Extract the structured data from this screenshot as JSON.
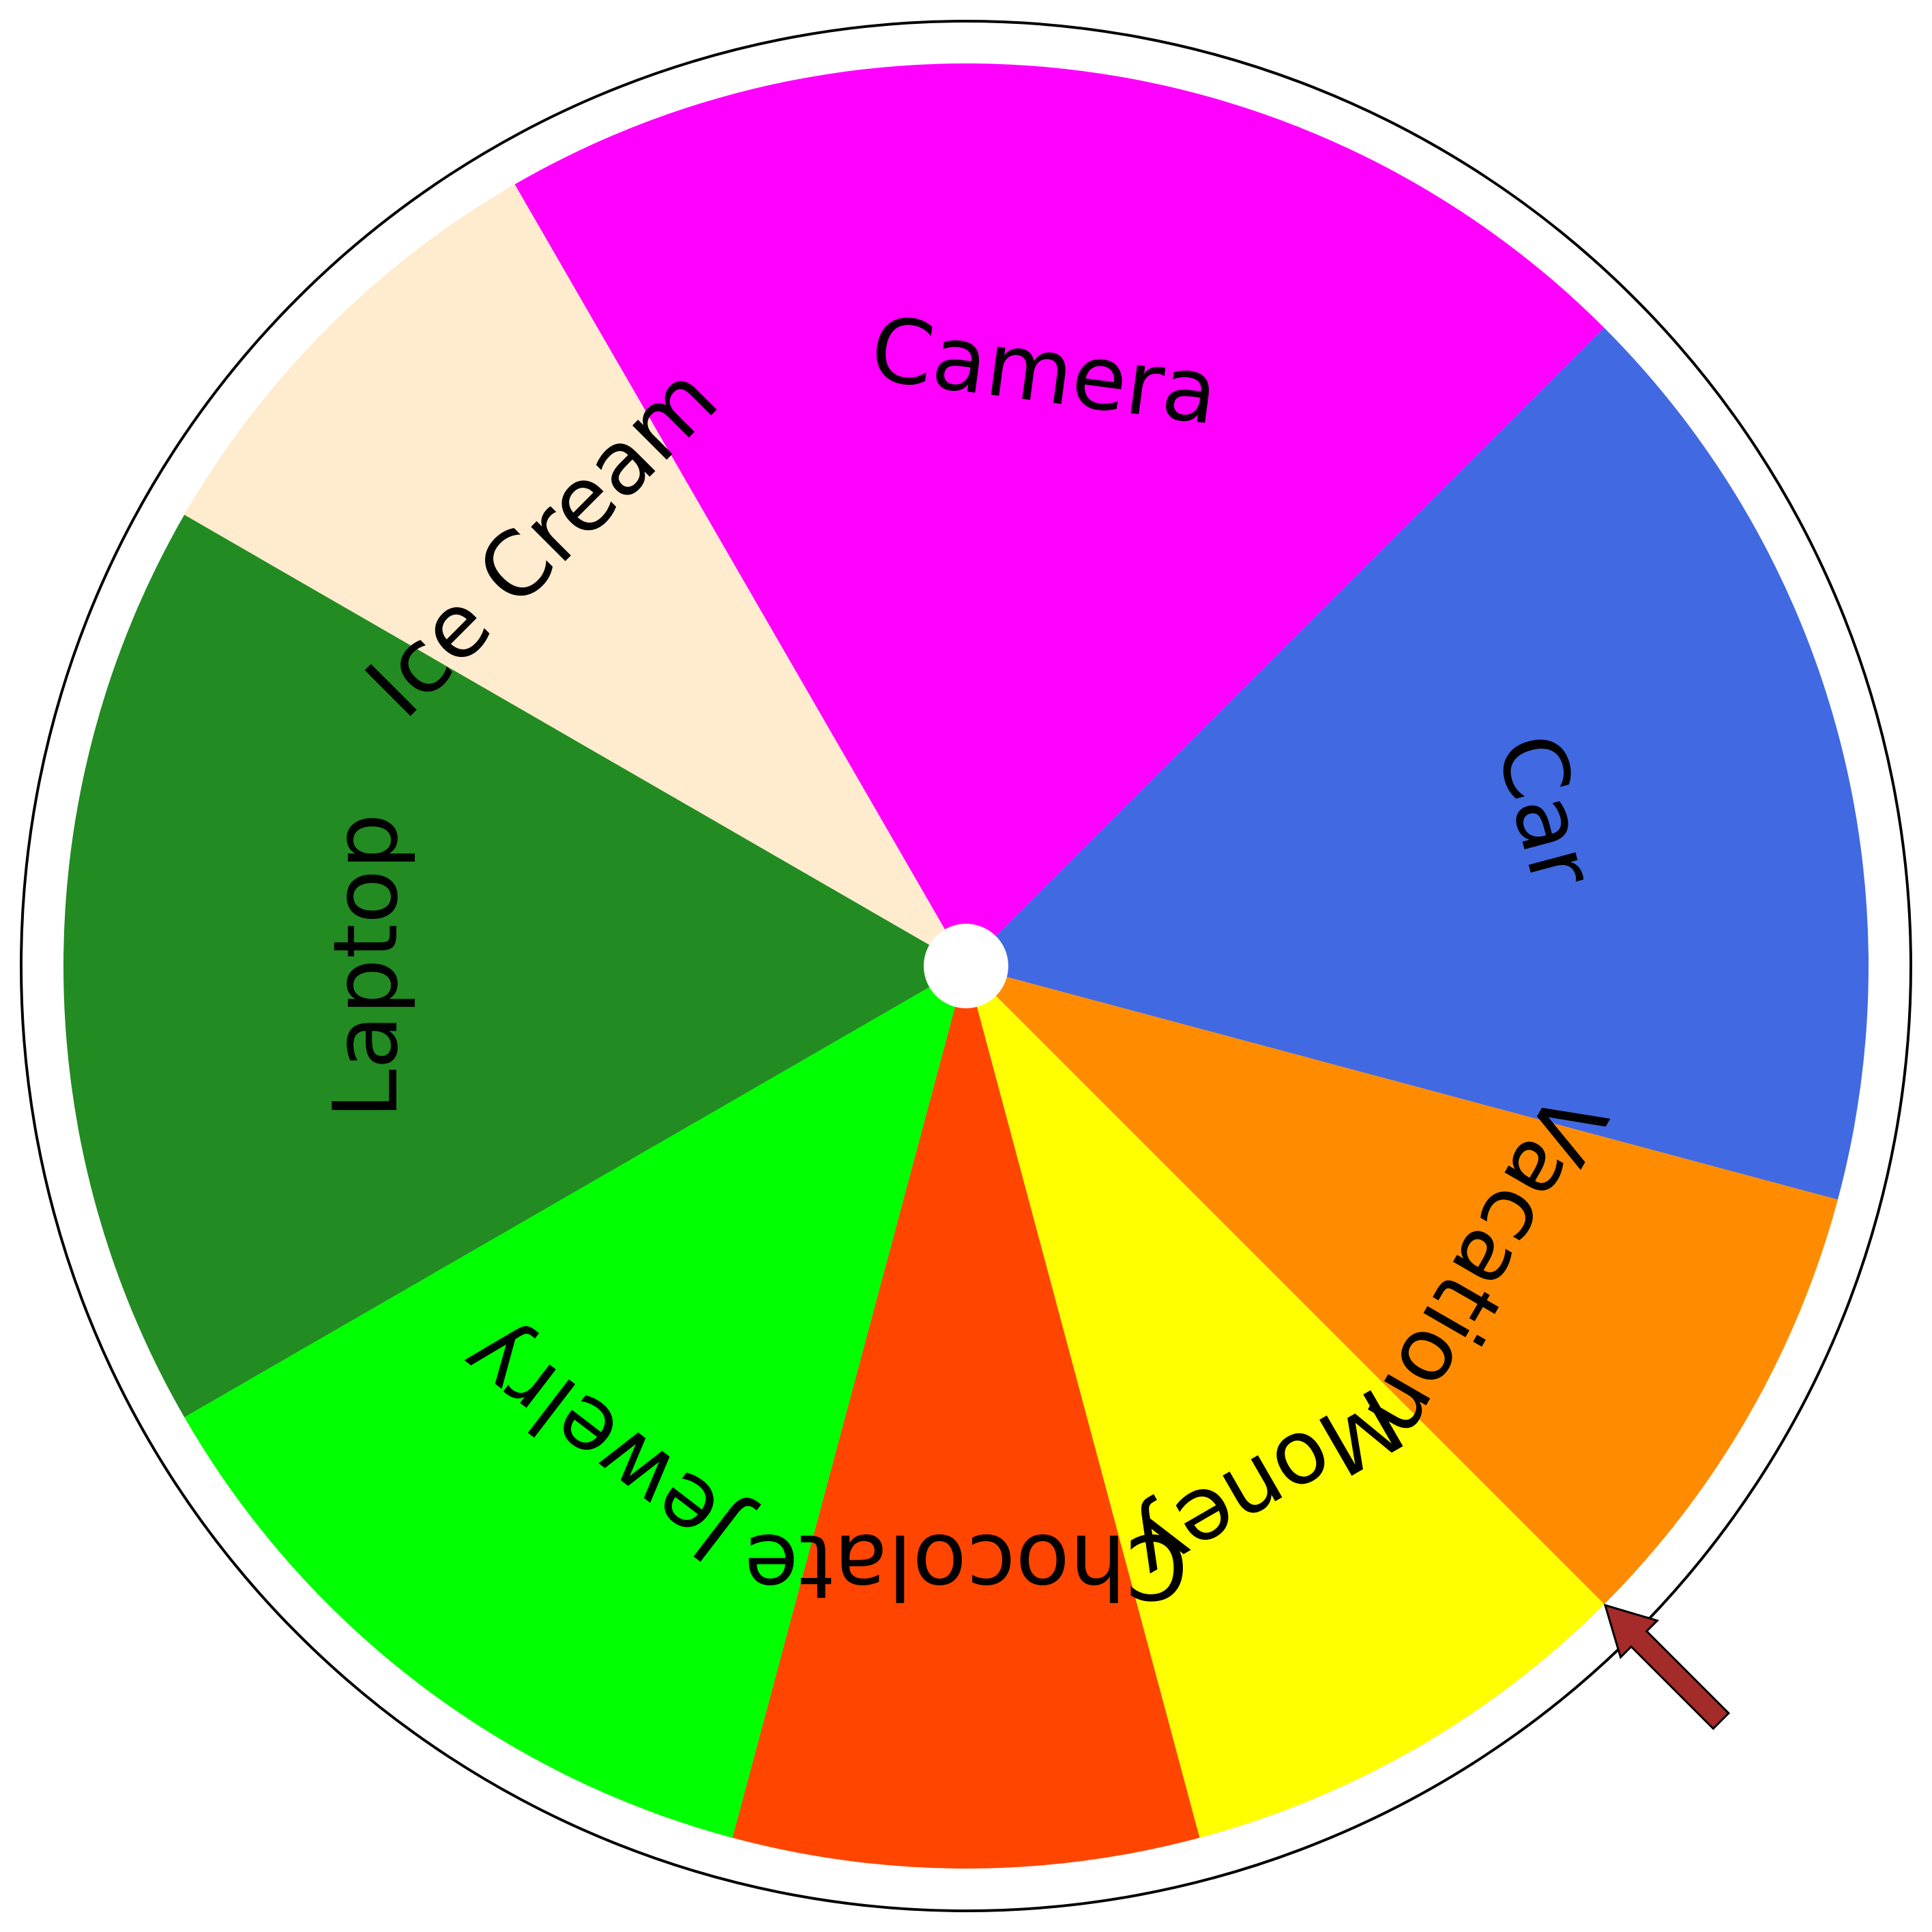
{
  "wheel": {
    "segments": [
      {
        "label": "Camera",
        "color": "#ff00ff",
        "start": 240,
        "end": 315
      },
      {
        "label": "Car",
        "color": "#4169e1",
        "start": 315,
        "end": 375
      },
      {
        "label": "Vacation",
        "color": "#ff8c00",
        "start": 15,
        "end": 45
      },
      {
        "label": "Money",
        "color": "#ffff00",
        "start": 45,
        "end": 75
      },
      {
        "label": "Chocolate",
        "color": "#ff4500",
        "start": 75,
        "end": 105
      },
      {
        "label": "Jewelry",
        "color": "#00ff00",
        "start": 105,
        "end": 150
      },
      {
        "label": "Laptop",
        "color": "#228b22",
        "start": 150,
        "end": 210
      },
      {
        "label": "Ice Cream",
        "color": "#ffebcd",
        "start": 210,
        "end": 240
      }
    ],
    "pointer_angle": 45,
    "pointer_color": "#a52a2a",
    "hub_color": "#ffffff",
    "rim_color": "#ffffff",
    "outline_color": "#000000"
  }
}
